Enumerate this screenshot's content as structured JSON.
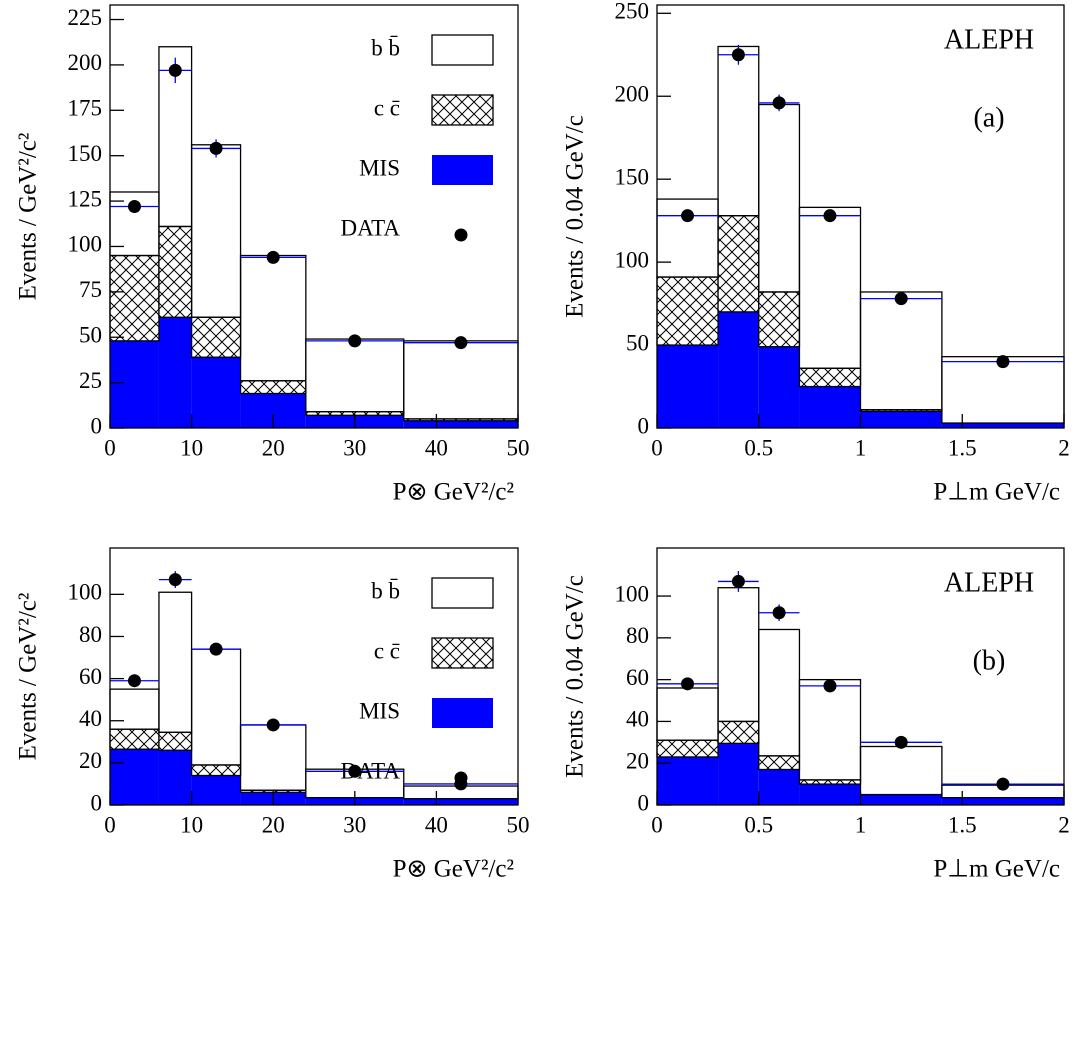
{
  "chart_data": [
    {
      "type": "histogram",
      "y_label": "Events / GeV²/c²",
      "x_label": "P⊗ GeV²/c²",
      "bins": [
        0,
        6,
        10,
        16,
        24,
        36,
        50
      ],
      "series": [
        {
          "name": "MIS",
          "color": "#0000ff",
          "fill": "solid",
          "values": [
            48,
            61,
            39,
            19,
            7,
            4
          ]
        },
        {
          "name": "c c̄",
          "color": "#000000",
          "fill": "hatch",
          "values": [
            47,
            50,
            22,
            7,
            2,
            1
          ]
        },
        {
          "name": "b b̄",
          "color": "#ffffff",
          "fill": "open",
          "values": [
            35,
            99,
            95,
            69,
            40,
            43
          ]
        }
      ],
      "data": {
        "name": "DATA",
        "x": [
          3,
          8,
          13,
          20,
          30,
          43
        ],
        "values": [
          122,
          197,
          154,
          94,
          48,
          47
        ],
        "errors": [
          3,
          7,
          5,
          3,
          2,
          2
        ]
      },
      "xlim": [
        0,
        50
      ],
      "xticks": [
        0,
        10,
        20,
        30,
        40,
        50
      ],
      "ylim": [
        0,
        233
      ],
      "yticks": [
        0,
        25,
        50,
        75,
        100,
        125,
        150,
        175,
        200,
        225
      ],
      "legend": true
    },
    {
      "type": "histogram",
      "y_label": "Events / 0.04 GeV/c",
      "x_label": "P⊥m GeV/c",
      "annotations": [
        "ALEPH",
        "(a)"
      ],
      "bins": [
        0,
        0.3,
        0.5,
        0.7,
        1.0,
        1.4,
        2.0
      ],
      "series": [
        {
          "color": "#0000ff",
          "fill": "solid",
          "values": [
            50,
            70,
            49,
            25,
            10,
            3
          ]
        },
        {
          "color": "#000000",
          "fill": "hatch",
          "values": [
            41,
            58,
            33,
            11,
            1,
            0
          ]
        },
        {
          "color": "#ffffff",
          "fill": "open",
          "values": [
            47,
            102,
            113,
            97,
            71,
            40
          ]
        }
      ],
      "data": {
        "x": [
          0.15,
          0.4,
          0.6,
          0.85,
          1.2,
          1.7
        ],
        "values": [
          128,
          225,
          196,
          128,
          78,
          40
        ],
        "errors": [
          3,
          6,
          5,
          3,
          2,
          2
        ]
      },
      "xlim": [
        0,
        2
      ],
      "xticks": [
        0,
        0.5,
        1,
        1.5,
        2
      ],
      "ylim": [
        0,
        255
      ],
      "yticks": [
        0,
        50,
        100,
        150,
        200,
        250
      ],
      "legend": false
    },
    {
      "type": "histogram",
      "y_label": "Events / GeV²/c²",
      "x_label": "P⊗ GeV²/c²",
      "bins": [
        0,
        6,
        10,
        16,
        24,
        36,
        50
      ],
      "series": [
        {
          "name": "MIS",
          "color": "#0000ff",
          "fill": "solid",
          "values": [
            26.5,
            26,
            14,
            6,
            3.5,
            3
          ]
        },
        {
          "name": "c c̄",
          "color": "#000000",
          "fill": "hatch",
          "values": [
            9.5,
            8.5,
            5,
            1,
            0,
            0
          ]
        },
        {
          "name": "b b̄",
          "color": "#ffffff",
          "fill": "open",
          "values": [
            19,
            66.5,
            55,
            31,
            13.5,
            6
          ]
        }
      ],
      "data": {
        "name": "DATA",
        "x": [
          3,
          8,
          13,
          20,
          30,
          43
        ],
        "values": [
          59,
          107,
          74,
          38,
          16,
          10
        ],
        "errors": [
          3,
          4,
          3,
          2,
          1,
          1
        ]
      },
      "xlim": [
        0,
        50
      ],
      "xticks": [
        0,
        10,
        20,
        30,
        40,
        50
      ],
      "ylim": [
        0,
        122
      ],
      "yticks": [
        0,
        20,
        40,
        60,
        80,
        100
      ],
      "legend": true
    },
    {
      "type": "histogram",
      "y_label": "Events / 0.04 GeV/c",
      "x_label": "P⊥m GeV/c",
      "annotations": [
        "ALEPH",
        "(b)"
      ],
      "bins": [
        0,
        0.3,
        0.5,
        0.7,
        1.0,
        1.4,
        2.0
      ],
      "series": [
        {
          "color": "#0000ff",
          "fill": "solid",
          "values": [
            23,
            29.5,
            17,
            10,
            5,
            3.5
          ]
        },
        {
          "color": "#000000",
          "fill": "hatch",
          "values": [
            8,
            10.5,
            6.5,
            2,
            0,
            0
          ]
        },
        {
          "color": "#ffffff",
          "fill": "open",
          "values": [
            25,
            64,
            60.5,
            48,
            23,
            6
          ]
        }
      ],
      "data": {
        "x": [
          0.15,
          0.4,
          0.6,
          0.85,
          1.2,
          1.7
        ],
        "values": [
          58,
          107,
          92,
          57,
          30,
          10
        ],
        "errors": [
          3,
          5,
          4,
          3,
          1,
          1
        ]
      },
      "xlim": [
        0,
        2
      ],
      "xticks": [
        0,
        0.5,
        1,
        1.5,
        2
      ],
      "ylim": [
        0,
        123
      ],
      "yticks": [
        0,
        20,
        40,
        60,
        80,
        100
      ],
      "legend": false
    }
  ]
}
